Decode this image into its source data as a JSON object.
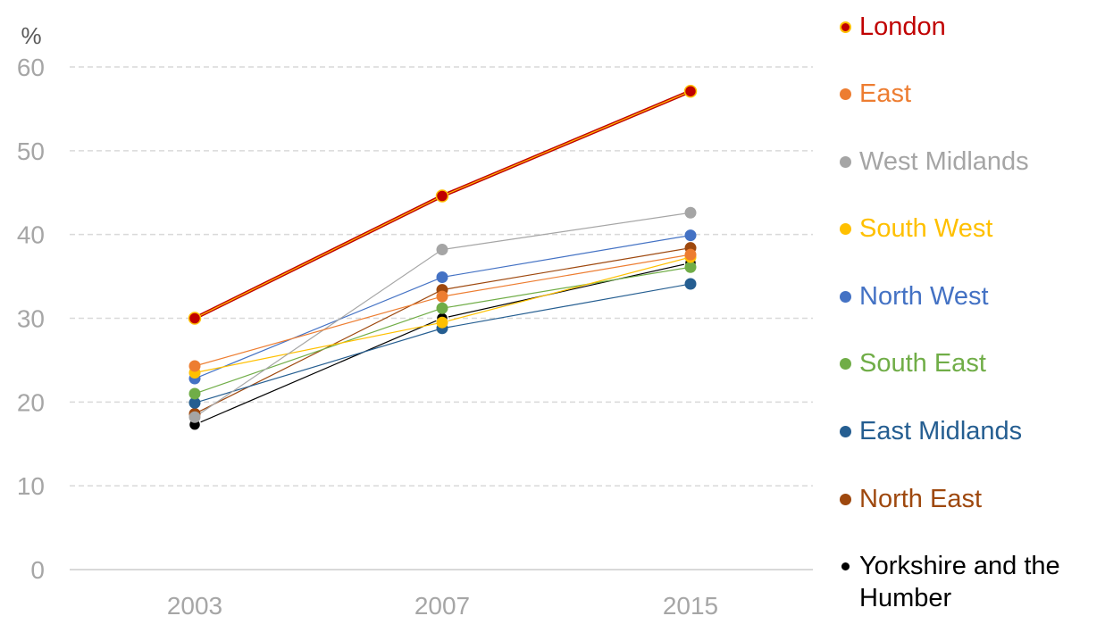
{
  "chart_data": {
    "type": "line",
    "ylabel": "%",
    "ylim": [
      0,
      60
    ],
    "yticks": [
      0,
      10,
      20,
      30,
      40,
      50,
      60
    ],
    "x": [
      "2003",
      "2007",
      "2015"
    ],
    "grid": true,
    "legend_position": "right",
    "series": [
      {
        "name": "London",
        "color": "#C00000",
        "line_color": "#FFC000",
        "marker_edge": "#FFC000",
        "values": [
          30.0,
          44.6,
          57.1
        ]
      },
      {
        "name": "East",
        "color": "#ED7D31",
        "values": [
          24.3,
          32.6,
          37.6
        ]
      },
      {
        "name": "West Midlands",
        "color": "#A5A5A5",
        "values": [
          18.2,
          38.2,
          42.6
        ]
      },
      {
        "name": "South West",
        "color": "#FFC000",
        "values": [
          23.5,
          29.5,
          37.3
        ]
      },
      {
        "name": "North West",
        "color": "#4472C4",
        "values": [
          22.8,
          34.9,
          39.9
        ]
      },
      {
        "name": "South East",
        "color": "#70AD47",
        "values": [
          21.0,
          31.2,
          36.1
        ]
      },
      {
        "name": "East Midlands",
        "color": "#255E91",
        "values": [
          19.9,
          28.8,
          34.1
        ]
      },
      {
        "name": "North East",
        "color": "#9E480E",
        "values": [
          18.6,
          33.4,
          38.4
        ]
      },
      {
        "name": "Yorkshire and the Humber",
        "color": "#000000",
        "marker_edge": "#FFFFFF",
        "values": [
          17.3,
          30.0,
          36.6
        ]
      }
    ]
  },
  "colors": {
    "axis_text": "#A6A6A6",
    "grid": "#D9D9D9",
    "axis_line": "#D9D9D9"
  }
}
